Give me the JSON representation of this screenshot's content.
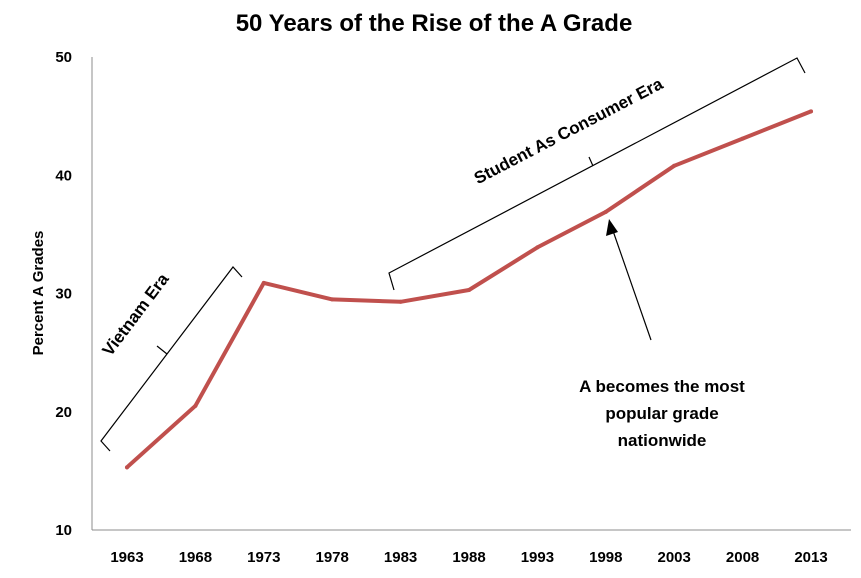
{
  "chart_data": {
    "type": "line",
    "title": "50 Years of the Rise of the A Grade",
    "xlabel": "",
    "ylabel": "Percent A Grades",
    "categories": [
      "1963",
      "1968",
      "1973",
      "1978",
      "1983",
      "1988",
      "1993",
      "1998",
      "2003",
      "2008",
      "2013"
    ],
    "series": [
      {
        "name": "Percent A Grades",
        "values": [
          15.3,
          20.5,
          30.9,
          29.5,
          29.3,
          30.3,
          33.9,
          36.9,
          40.8,
          43.1,
          45.4
        ],
        "color": "#c0504d"
      }
    ],
    "ylim": [
      10,
      50
    ],
    "yticks": [
      10,
      20,
      30,
      40,
      50
    ],
    "grid": false,
    "annotations": {
      "vietnam": "Vietnam Era",
      "consumer": "Student As Consumer Era",
      "popular": [
        "A becomes the most",
        "popular grade",
        "nationwide"
      ]
    }
  }
}
